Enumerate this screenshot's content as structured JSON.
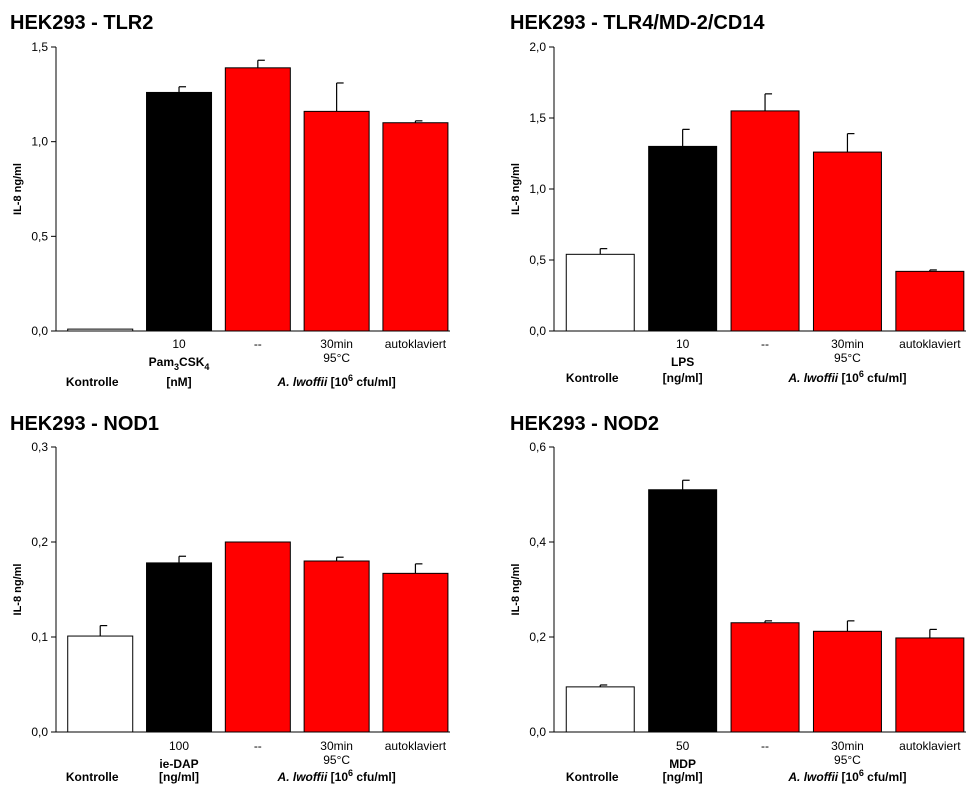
{
  "chart_data": [
    {
      "type": "bar",
      "title": "HEK293 - TLR2",
      "ylabel": "IL-8 ng/ml",
      "ylim": [
        0,
        1.5
      ],
      "yticks": [
        "0,0",
        "0,5",
        "1,0",
        "1,5"
      ],
      "categories": [
        "",
        "10",
        "--",
        "30min",
        "autoklaviert"
      ],
      "category_sublabels": [
        "",
        "",
        "",
        "95°C",
        ""
      ],
      "values": [
        0.01,
        1.26,
        1.39,
        1.16,
        1.1
      ],
      "errors": [
        0,
        0.03,
        0.04,
        0.15,
        0.01
      ],
      "bar_colors": [
        "#ffffff",
        "#000000",
        "#ff0000",
        "#ff0000",
        "#ff0000"
      ],
      "groups": {
        "control": "Kontrolle",
        "stimulus_name": "Pam",
        "stimulus_sub1": "3",
        "stimulus_mid": "CSK",
        "stimulus_sub2": "4",
        "stimulus_unit": "[nM]",
        "bacteria_name": "A. lwoffii",
        "bacteria_unit_pre": " [10",
        "bacteria_unit_exp": "6",
        "bacteria_unit_post": " cfu/ml]"
      }
    },
    {
      "type": "bar",
      "title": "HEK293 - TLR4/MD-2/CD14",
      "ylabel": "IL-8 ng/ml",
      "ylim": [
        0,
        2.0
      ],
      "yticks": [
        "0,0",
        "0,5",
        "1,0",
        "1,5",
        "2,0"
      ],
      "categories": [
        "",
        "10",
        "--",
        "30min",
        "autoklaviert"
      ],
      "category_sublabels": [
        "",
        "",
        "",
        "95°C",
        ""
      ],
      "values": [
        0.54,
        1.3,
        1.55,
        1.26,
        0.42
      ],
      "errors": [
        0.04,
        0.12,
        0.12,
        0.13,
        0.01
      ],
      "bar_colors": [
        "#ffffff",
        "#000000",
        "#ff0000",
        "#ff0000",
        "#ff0000"
      ],
      "groups": {
        "control": "Kontrolle",
        "stimulus_name": "LPS",
        "stimulus_unit": "[ng/ml]",
        "bacteria_name": "A. lwoffii",
        "bacteria_unit_pre": " [10",
        "bacteria_unit_exp": "6",
        "bacteria_unit_post": " cfu/ml]"
      }
    },
    {
      "type": "bar",
      "title": "HEK293 - NOD1",
      "ylabel": "IL-8 ng/ml",
      "ylim": [
        0,
        0.3
      ],
      "yticks": [
        "0,0",
        "0,1",
        "0,2",
        "0,3"
      ],
      "categories": [
        "",
        "100",
        "--",
        "30min",
        "autoklaviert"
      ],
      "category_sublabels": [
        "",
        "",
        "",
        "95°C",
        ""
      ],
      "values": [
        0.101,
        0.178,
        0.2,
        0.18,
        0.167
      ],
      "errors": [
        0.011,
        0.007,
        0,
        0.004,
        0.01
      ],
      "bar_colors": [
        "#ffffff",
        "#000000",
        "#ff0000",
        "#ff0000",
        "#ff0000"
      ],
      "groups": {
        "control": "Kontrolle",
        "stimulus_name": "ie-DAP",
        "stimulus_unit": "[ng/ml]",
        "bacteria_name": "A. lwoffii",
        "bacteria_unit_pre": " [10",
        "bacteria_unit_exp": "6",
        "bacteria_unit_post": " cfu/ml]"
      }
    },
    {
      "type": "bar",
      "title": "HEK293 - NOD2",
      "ylabel": "IL-8 ng/ml",
      "ylim": [
        0,
        0.6
      ],
      "yticks": [
        "0,0",
        "0,2",
        "0,4",
        "0,6"
      ],
      "categories": [
        "",
        "50",
        "--",
        "30min",
        "autoklaviert"
      ],
      "category_sublabels": [
        "",
        "",
        "",
        "95°C",
        ""
      ],
      "values": [
        0.095,
        0.51,
        0.23,
        0.212,
        0.198
      ],
      "errors": [
        0.004,
        0.02,
        0.004,
        0.022,
        0.018
      ],
      "bar_colors": [
        "#ffffff",
        "#000000",
        "#ff0000",
        "#ff0000",
        "#ff0000"
      ],
      "groups": {
        "control": "Kontrolle",
        "stimulus_name": "MDP",
        "stimulus_unit": "[ng/ml]",
        "bacteria_name": "A. lwoffii",
        "bacteria_unit_pre": " [10",
        "bacteria_unit_exp": "6",
        "bacteria_unit_post": " cfu/ml]"
      }
    }
  ]
}
